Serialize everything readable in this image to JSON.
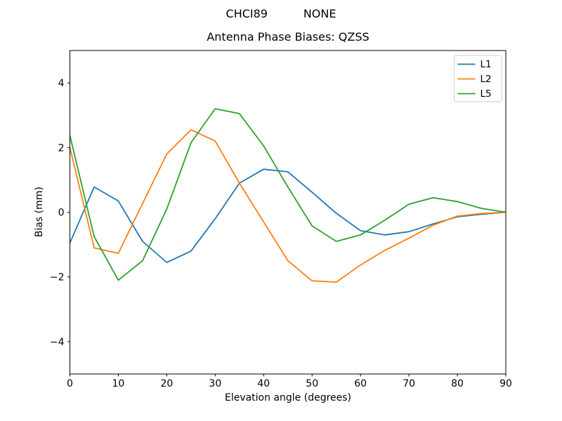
{
  "figure": {
    "suptitle": "CHCI89          NONE"
  },
  "chart_data": {
    "type": "line",
    "title": "Antenna Phase Biases: QZSS",
    "xlabel": "Elevation angle (degrees)",
    "ylabel": "Bias (mm)",
    "xlim": [
      0,
      90
    ],
    "ylim": [
      -5,
      5
    ],
    "xticks": [
      0,
      10,
      20,
      30,
      40,
      50,
      60,
      70,
      80,
      90
    ],
    "yticks": [
      -4,
      -2,
      0,
      2,
      4
    ],
    "grid": false,
    "legend_position": "upper right",
    "x": [
      0,
      5,
      10,
      15,
      20,
      25,
      30,
      35,
      40,
      45,
      50,
      55,
      60,
      65,
      70,
      75,
      80,
      85,
      90
    ],
    "series": [
      {
        "name": "L1",
        "color": "#1f77b4",
        "values": [
          -0.95,
          0.78,
          0.35,
          -0.9,
          -1.55,
          -1.2,
          -0.2,
          0.9,
          1.33,
          1.25,
          0.62,
          -0.03,
          -0.57,
          -0.7,
          -0.6,
          -0.36,
          -0.14,
          -0.06,
          0.0
        ]
      },
      {
        "name": "L2",
        "color": "#ff7f0e",
        "values": [
          2.0,
          -1.1,
          -1.27,
          0.27,
          1.8,
          2.55,
          2.2,
          0.9,
          -0.3,
          -1.5,
          -2.12,
          -2.16,
          -1.63,
          -1.18,
          -0.8,
          -0.4,
          -0.12,
          -0.04,
          0.0
        ]
      },
      {
        "name": "L5",
        "color": "#2ca02c",
        "values": [
          2.37,
          -0.75,
          -2.1,
          -1.5,
          0.1,
          2.15,
          3.2,
          3.05,
          2.05,
          0.78,
          -0.42,
          -0.9,
          -0.7,
          -0.25,
          0.25,
          0.45,
          0.33,
          0.12,
          0.0
        ]
      }
    ]
  }
}
